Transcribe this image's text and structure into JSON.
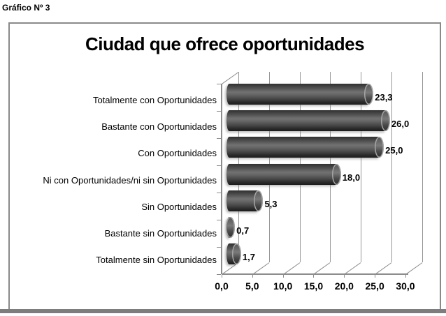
{
  "figure": {
    "caption": "Gráfico Nº 3"
  },
  "chart_data": {
    "type": "bar",
    "orientation": "horizontal",
    "style": "3d-cylinder",
    "title": "Ciudad que ofrece oportunidades",
    "categories": [
      "Totalmente con Oportunidades",
      "Bastante con Oportunidades",
      "Con Oportunidades",
      "Ni con Oportunidades/ni sin Oportunidades",
      "Sin Oportunidades",
      "Bastante sin Oportunidades",
      "Totalmente sin Oportunidades"
    ],
    "values": [
      23.3,
      26.0,
      25.0,
      18.0,
      5.3,
      0.7,
      1.7
    ],
    "value_labels": [
      "23,3",
      "26,0",
      "25,0",
      "18,0",
      "5,3",
      "0,7",
      "1,7"
    ],
    "x_ticks": [
      "0,0",
      "5,0",
      "10,0",
      "15,0",
      "20,0",
      "25,0",
      "30,0"
    ],
    "x_tick_values": [
      0,
      5,
      10,
      15,
      20,
      25,
      30
    ],
    "xlim": [
      0,
      30
    ],
    "xlabel": "",
    "ylabel": "",
    "legend": null,
    "grid": true,
    "colors": {
      "bar_dark": "#262626",
      "bar_mid": "#6e6e6e",
      "grid": "#979797",
      "frame": "#8a8a8a",
      "text": "#000000",
      "background": "#ffffff"
    }
  }
}
